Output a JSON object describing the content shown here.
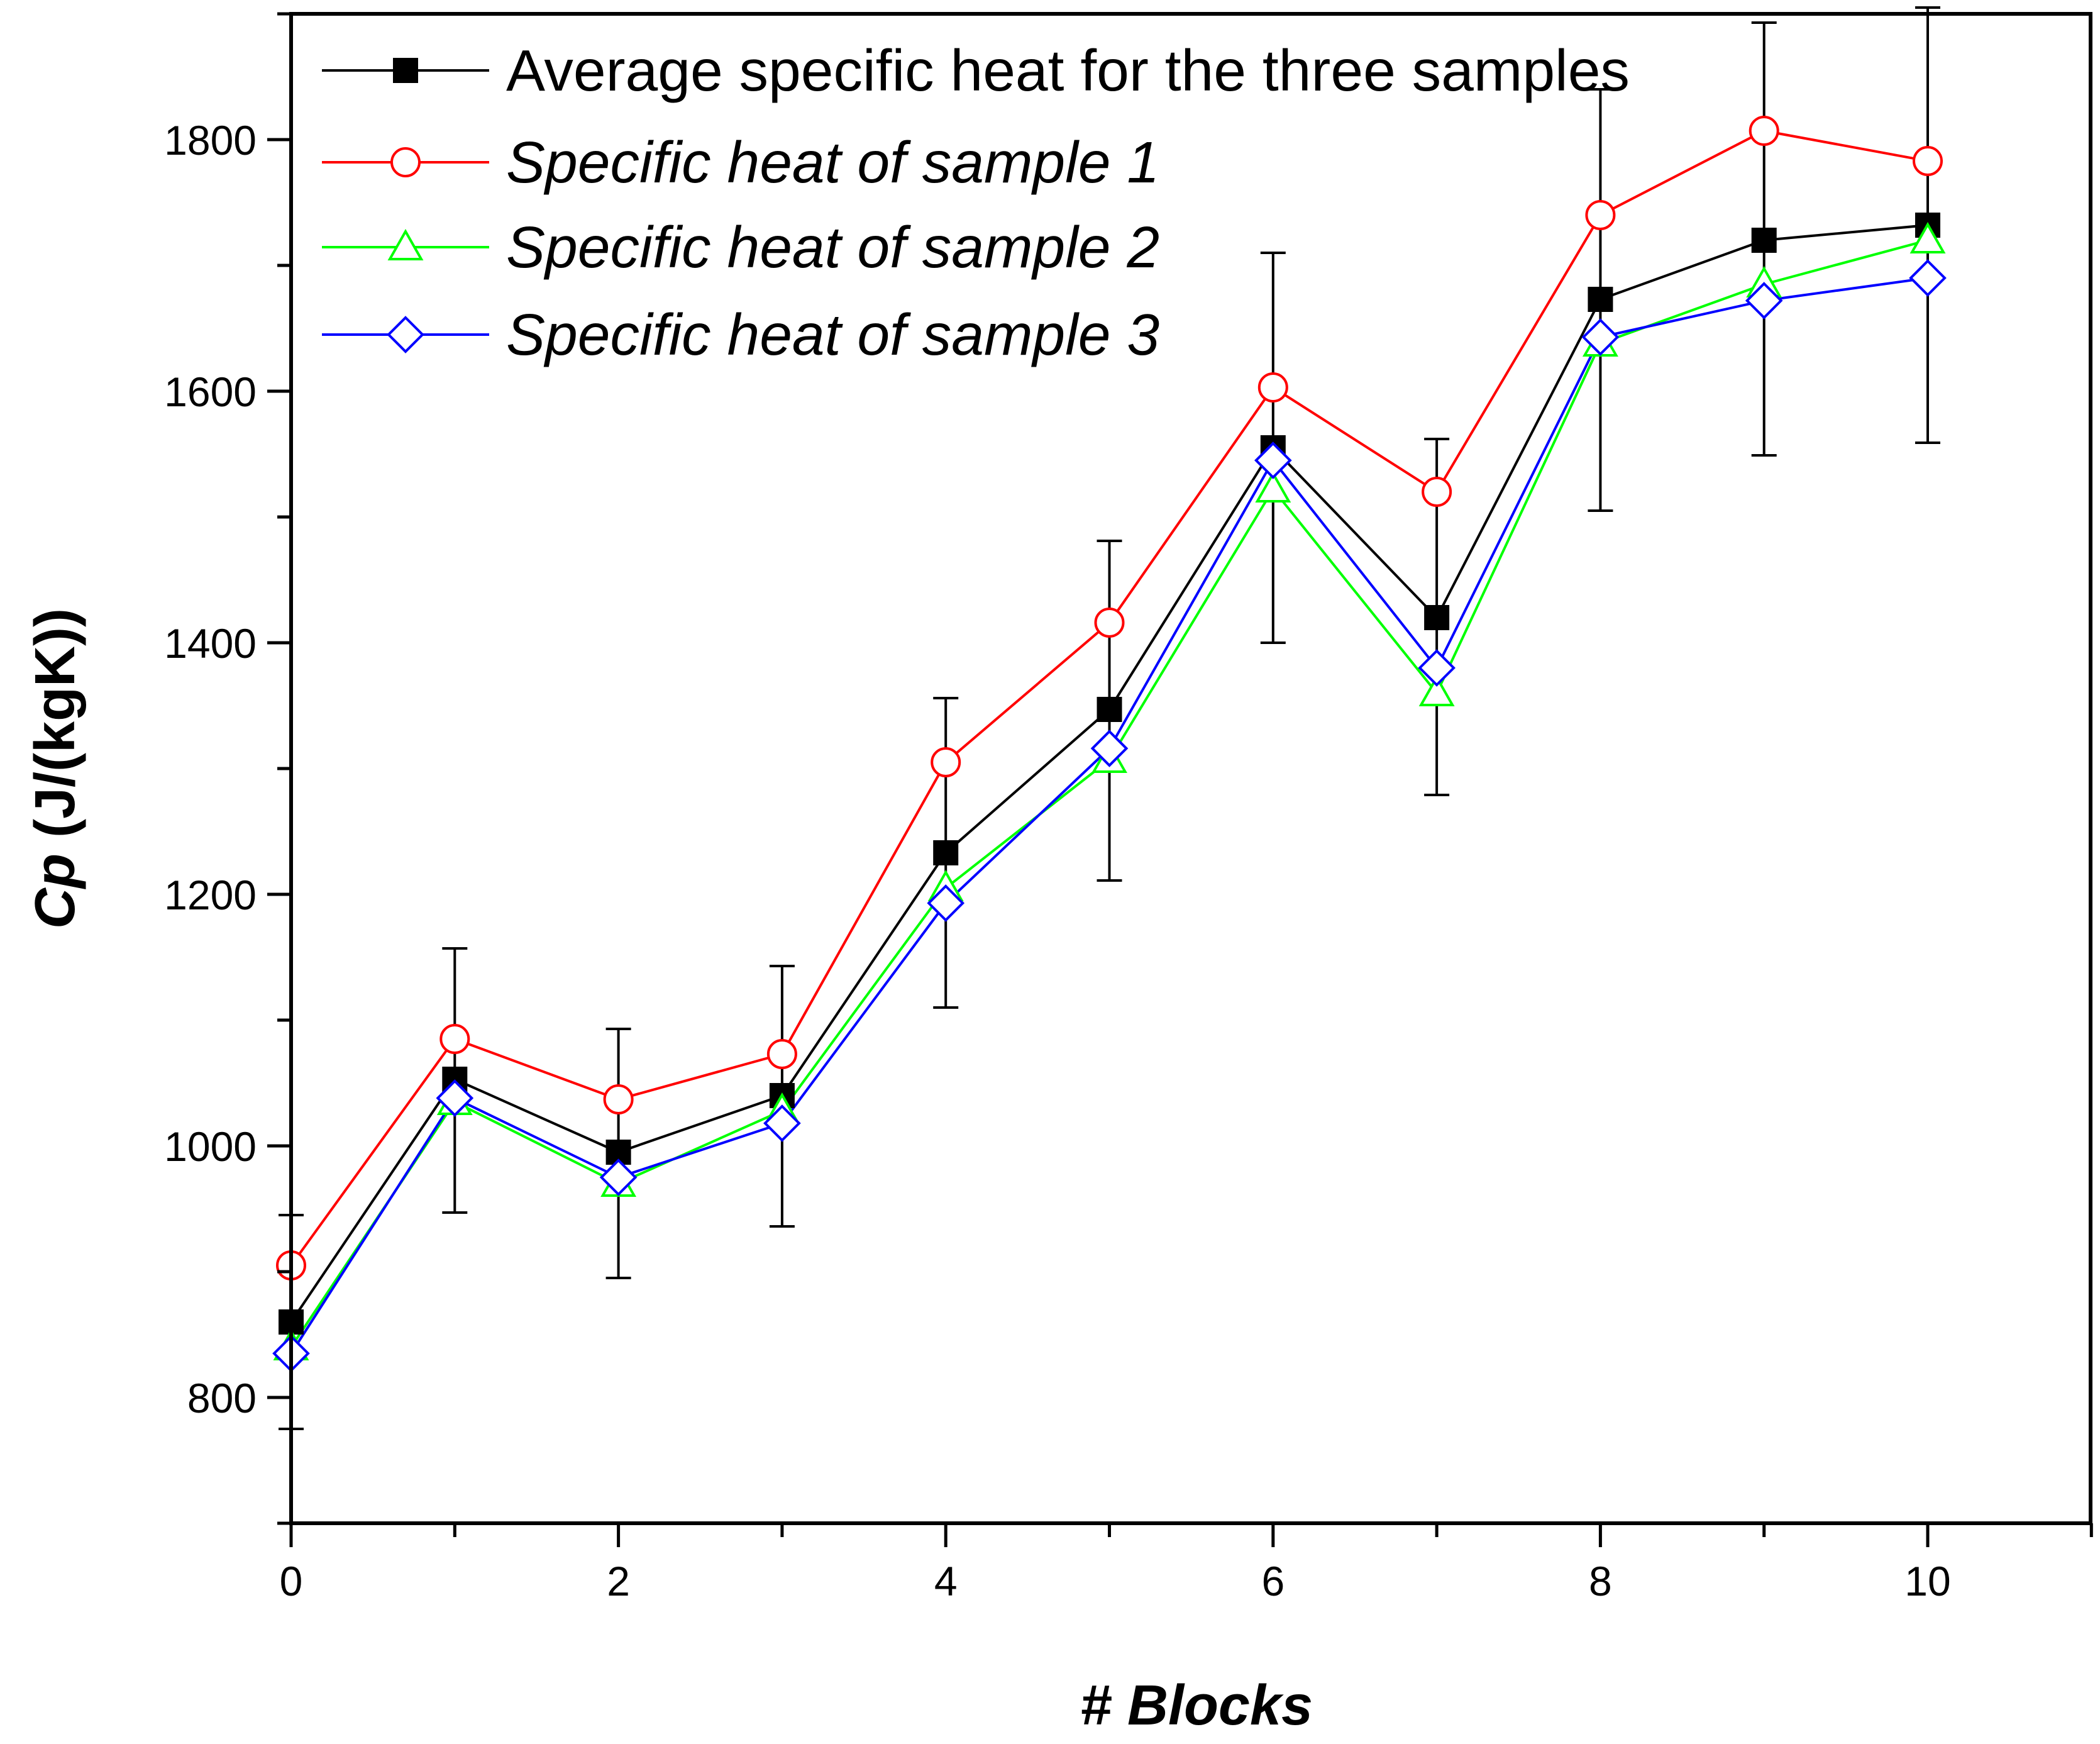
{
  "chart_data": {
    "type": "line",
    "title": "",
    "xlabel": "# Blocks",
    "ylabel": {
      "prefix": "Cp",
      "suffix": " (J/(kgK))"
    },
    "xlim": [
      0,
      11
    ],
    "ylim": [
      700,
      1920
    ],
    "x_ticks": [
      0,
      2,
      4,
      6,
      8,
      10
    ],
    "x_minor_ticks": [
      1,
      3,
      5,
      7,
      9,
      11
    ],
    "y_ticks": [
      800,
      1000,
      1200,
      1400,
      1600,
      1800
    ],
    "y_minor_ticks": [
      700,
      900,
      1100,
      1300,
      1500,
      1700,
      1900
    ],
    "grid": false,
    "legend_position": "top-left",
    "x": [
      0,
      1,
      2,
      3,
      4,
      5,
      6,
      7,
      8,
      9,
      10
    ],
    "series": [
      {
        "name": "Average specific heat for the three samples",
        "color": "#000000",
        "marker": "filled-square",
        "italic": false,
        "values": [
          860,
          1053,
          995,
          1040,
          1233,
          1347,
          1555,
          1420,
          1673,
          1720,
          1732
        ],
        "error_low": [
          775,
          947,
          895,
          936,
          1110,
          1211,
          1400,
          1279,
          1505,
          1549,
          1559
        ],
        "error_high": [
          945,
          1157,
          1093,
          1143,
          1356,
          1481,
          1710,
          1562,
          1840,
          1893,
          1905
        ]
      },
      {
        "name": "Specific heat of sample 1",
        "color": "#ff0000",
        "marker": "open-circle",
        "italic": true,
        "values": [
          905,
          1085,
          1037,
          1073,
          1305,
          1416,
          1603,
          1520,
          1740,
          1807,
          1783
        ]
      },
      {
        "name": "Specific heat of sample 2",
        "color": "#00ff00",
        "marker": "open-triangle",
        "italic": true,
        "values": [
          840,
          1035,
          970,
          1028,
          1205,
          1307,
          1522,
          1360,
          1638,
          1685,
          1720
        ]
      },
      {
        "name": "Specific heat of sample 3",
        "color": "#0000ff",
        "marker": "open-diamond",
        "italic": true,
        "values": [
          835,
          1038,
          975,
          1018,
          1193,
          1316,
          1545,
          1380,
          1643,
          1672,
          1690
        ]
      }
    ]
  }
}
